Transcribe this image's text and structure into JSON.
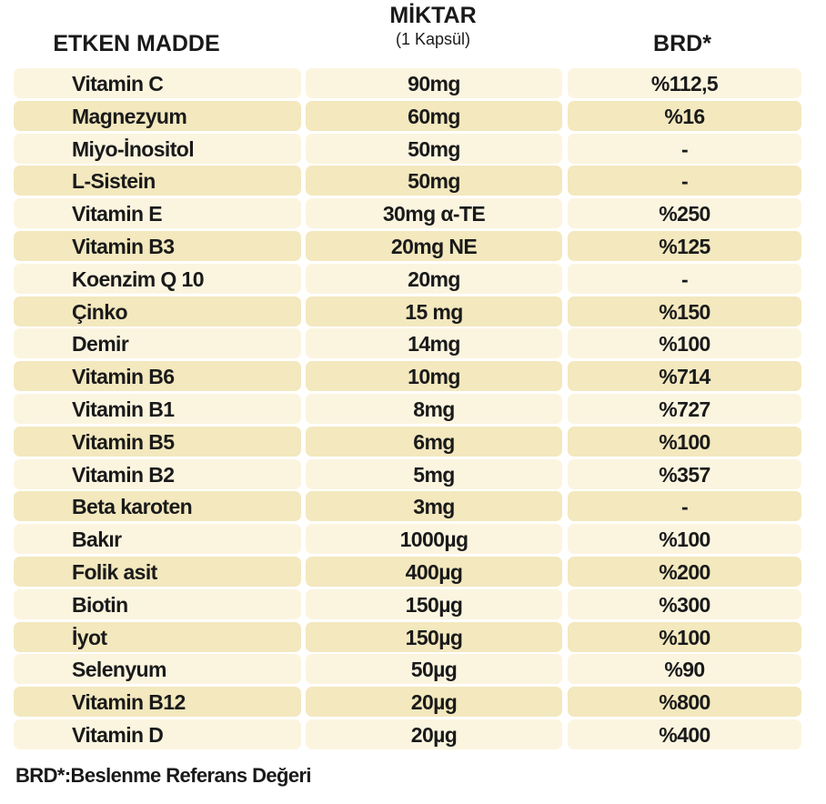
{
  "table": {
    "header": {
      "ingredient": "ETKEN MADDE",
      "amount": "MİKTAR",
      "amount_note": "(1 Kapsül)",
      "rda": "BRD*"
    },
    "rows": [
      [
        "Vitamin C",
        "90mg",
        "%112,5"
      ],
      [
        "Magnezyum",
        "60mg",
        "%16"
      ],
      [
        "Miyo-İnositol",
        "50mg",
        "-"
      ],
      [
        "L-Sistein",
        "50mg",
        "-"
      ],
      [
        "Vitamin E",
        "30mg α-TE",
        "%250"
      ],
      [
        "Vitamin B3",
        "20mg NE",
        "%125"
      ],
      [
        "Koenzim Q 10",
        "20mg",
        "-"
      ],
      [
        "Çinko",
        "15 mg",
        "%150"
      ],
      [
        "Demir",
        "14mg",
        "%100"
      ],
      [
        "Vitamin B6",
        "10mg",
        "%714"
      ],
      [
        "Vitamin B1",
        "8mg",
        "%727"
      ],
      [
        "Vitamin B5",
        "6mg",
        "%100"
      ],
      [
        "Vitamin B2",
        "5mg",
        "%357"
      ],
      [
        "Beta karoten",
        "3mg",
        "-"
      ],
      [
        "Bakır",
        "1000µg",
        "%100"
      ],
      [
        "Folik asit",
        "400µg",
        "%200"
      ],
      [
        "Biotin",
        "150µg",
        "%300"
      ],
      [
        "İyot",
        "150µg",
        "%100"
      ],
      [
        "Selenyum",
        "50µg",
        "%90"
      ],
      [
        "Vitamin B12",
        "20µg",
        "%800"
      ],
      [
        "Vitamin D",
        "20µg",
        "%400"
      ]
    ],
    "footnote": "BRD*:Beslenme Referans Değeri"
  }
}
